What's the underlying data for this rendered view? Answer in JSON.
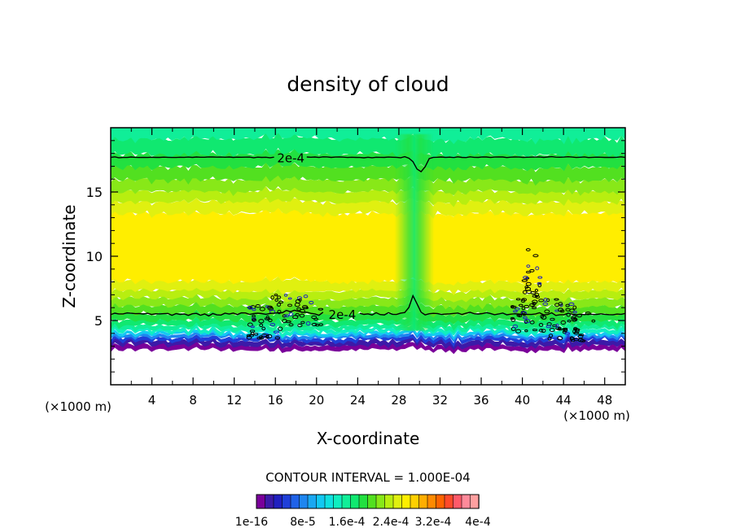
{
  "chart_data": {
    "type": "heatmap",
    "title": "density of cloud",
    "xlabel": "X-coordinate",
    "ylabel": "Z-coordinate",
    "x_unit_left": "(×1000 m)",
    "x_unit_right": "(×1000 m)",
    "xlim": [
      0,
      50
    ],
    "ylim": [
      0,
      20
    ],
    "x_ticks": [
      "4",
      "8",
      "12",
      "16",
      "20",
      "24",
      "28",
      "32",
      "36",
      "40",
      "44",
      "48"
    ],
    "y_ticks": [
      "5",
      "10",
      "15"
    ],
    "contour_interval_text": "CONTOUR INTERVAL = 1.000E-04",
    "contours": [
      {
        "label": "2e-4",
        "z_level": 17.7,
        "label_x": 17.5
      },
      {
        "label": "2e-4",
        "z_level": 5.5,
        "label_x": 22.5
      }
    ],
    "colorbar": {
      "colors": [
        "#7a009a",
        "#3c1aa8",
        "#2020c0",
        "#1f3fd8",
        "#1f62e8",
        "#1e86f0",
        "#1aa8f2",
        "#13c8f2",
        "#10e0e0",
        "#10eec0",
        "#10ee98",
        "#10e870",
        "#22e040",
        "#52e020",
        "#88e818",
        "#b8ee10",
        "#e0f010",
        "#ffee00",
        "#ffd000",
        "#ffae00",
        "#ff8a00",
        "#ff6400",
        "#ff4a2a",
        "#ff5a6a",
        "#ff8a9a",
        "#ffa0a0"
      ],
      "labels": [
        "1e-16",
        "8e-5",
        "1.6e-4",
        "2.4e-4",
        "3.2e-4",
        "4e-4"
      ]
    },
    "grid": false,
    "legend": "bottom-center"
  }
}
